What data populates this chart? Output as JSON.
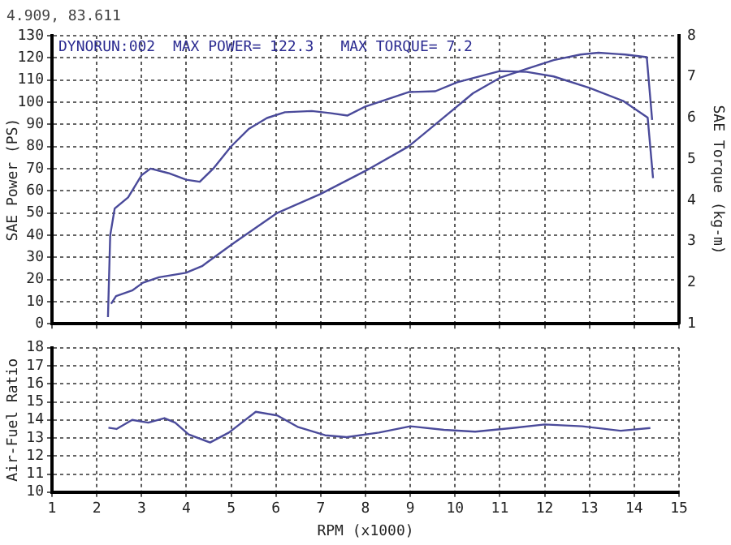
{
  "chart_data": [
    {
      "type": "line",
      "ylabel": "SAE Power (PS)",
      "y2label": "SAE Torque (kg-m)",
      "annotations": [
        "4.909, 83.611",
        "DYNORUN:002  MAX POWER= 122.3",
        "MAX TORQUE= 7.2"
      ],
      "xlim": [
        1,
        15
      ],
      "xticks": [
        1,
        2,
        3,
        4,
        5,
        6,
        7,
        8,
        9,
        10,
        11,
        12,
        13,
        14,
        15
      ],
      "ylim": [
        0,
        130
      ],
      "yticks": [
        0,
        10,
        20,
        30,
        40,
        50,
        60,
        70,
        80,
        90,
        100,
        110,
        120,
        130
      ],
      "y2lim": [
        1,
        8
      ],
      "y2ticks": [
        1,
        2,
        3,
        4,
        5,
        6,
        7,
        8
      ],
      "grid": true,
      "legend": false,
      "marker": "none",
      "line_style": "solid",
      "tick_labels": "y",
      "series": [
        {
          "color": "#4a4a9a",
          "x": [
            2.32,
            2.43,
            2.79,
            3.03,
            3.39,
            3.99,
            4.35,
            5.07,
            6.03,
            6.99,
            8.0,
            8.96,
            9.68,
            10.4,
            11.0,
            11.6,
            12.2,
            12.8,
            13.2,
            13.8,
            14.28,
            14.4
          ],
          "values": [
            9,
            12.5,
            15,
            18.5,
            21,
            23,
            26,
            36.6,
            50,
            58.5,
            69,
            80,
            92,
            104,
            111,
            115,
            119,
            121.5,
            122.3,
            121.5,
            120.3,
            92
          ]
        },
        {
          "color": "#4a4a9a",
          "axis": "y2",
          "x": [
            2.25,
            2.3,
            2.4,
            2.7,
            3.0,
            3.2,
            3.6,
            4.0,
            4.3,
            4.6,
            5.0,
            5.4,
            5.8,
            6.2,
            6.8,
            7.2,
            7.6,
            8.0,
            8.96,
            9.56,
            10.05,
            11.0,
            11.6,
            12.2,
            13.0,
            13.76,
            14.3,
            14.42
          ],
          "values": [
            1.16,
            3.15,
            3.8,
            4.07,
            4.61,
            4.77,
            4.66,
            4.5,
            4.45,
            4.77,
            5.31,
            5.74,
            6.0,
            6.14,
            6.17,
            6.12,
            6.06,
            6.28,
            6.63,
            6.65,
            6.87,
            7.14,
            7.12,
            7.01,
            6.73,
            6.41,
            6.01,
            4.54
          ]
        }
      ]
    },
    {
      "type": "line",
      "xlabel": "RPM (x1000)",
      "ylabel": "Air-Fuel Ratio",
      "xlim": [
        1,
        15
      ],
      "xticks": [
        1,
        2,
        3,
        4,
        5,
        6,
        7,
        8,
        9,
        10,
        11,
        12,
        13,
        14,
        15
      ],
      "ylim": [
        10,
        18
      ],
      "yticks": [
        10,
        11,
        12,
        13,
        14,
        15,
        16,
        17,
        18
      ],
      "grid": true,
      "legend": false,
      "marker": "none",
      "line_style": "solid",
      "series": [
        {
          "color": "#4a4a9a",
          "x": [
            2.26,
            2.44,
            2.79,
            3.15,
            3.51,
            3.75,
            4.05,
            4.53,
            4.95,
            5.55,
            6.03,
            6.5,
            7.1,
            7.58,
            8.3,
            9.0,
            9.75,
            10.45,
            11.28,
            12.0,
            12.84,
            13.7,
            14.36
          ],
          "values": [
            13.57,
            13.5,
            14.0,
            13.85,
            14.1,
            13.85,
            13.2,
            12.75,
            13.3,
            14.45,
            14.25,
            13.6,
            13.15,
            13.05,
            13.3,
            13.65,
            13.45,
            13.35,
            13.55,
            13.75,
            13.65,
            13.4,
            13.55
          ]
        }
      ]
    }
  ]
}
